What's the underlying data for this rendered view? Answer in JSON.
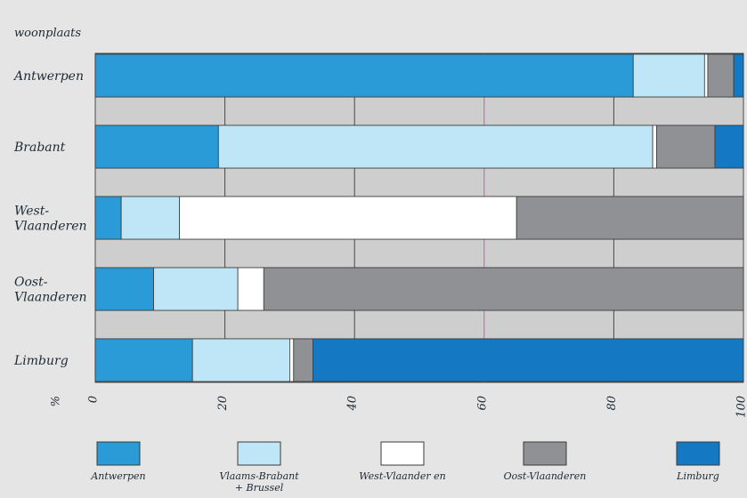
{
  "chart_data": {
    "type": "bar",
    "orientation": "horizontal",
    "stacked": true,
    "ylabel": "woonplaats",
    "xlabel": "%",
    "xlim": [
      0,
      100
    ],
    "xticks": [
      0,
      20,
      40,
      60,
      80,
      100
    ],
    "grid": true,
    "legend_position": "bottom",
    "categories": [
      [
        "Antwerpen"
      ],
      [
        "Brabant"
      ],
      [
        "West-",
        "Vlaanderen"
      ],
      [
        "Oost-",
        "Vlaanderen"
      ],
      [
        "Limburg"
      ]
    ],
    "series": [
      {
        "name": [
          "Antwerpen"
        ],
        "color": "#2a9bd7",
        "values": [
          83,
          19,
          4,
          9,
          15
        ]
      },
      {
        "name": [
          "Vlaams-Brabant",
          "+ Brussel"
        ],
        "color": "#bfe6f6",
        "values": [
          11,
          67,
          9,
          13,
          15
        ]
      },
      {
        "name": [
          "West-Vlaander en"
        ],
        "color": "#ffffff",
        "values": [
          0.5,
          0.6,
          52,
          4,
          0.6
        ]
      },
      {
        "name": [
          "Oost-Vlaanderen"
        ],
        "color": "#8f9194",
        "values": [
          4,
          9,
          35,
          74,
          3
        ]
      },
      {
        "name": [
          "Limburg"
        ],
        "color": "#1578c2",
        "values": [
          1.5,
          4.4,
          0,
          0,
          66.4
        ]
      }
    ]
  }
}
